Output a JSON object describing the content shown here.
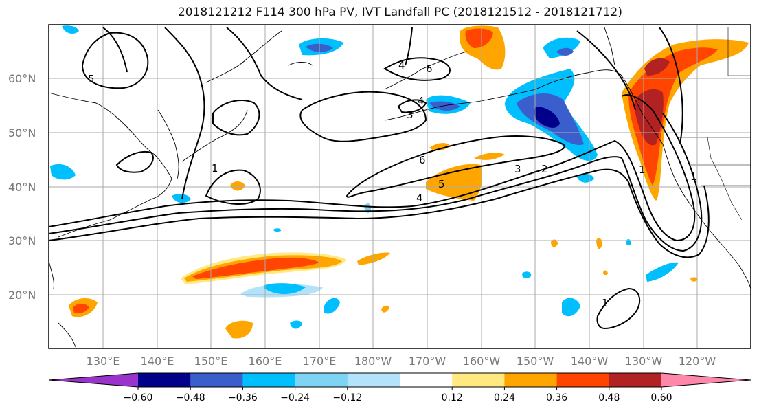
{
  "title": "2018121212 F114 300 hPa PV, IVT Landfall PC (2018121512 - 2018121712)",
  "map": {
    "lat_labels": [
      "60°N",
      "50°N",
      "40°N",
      "30°N",
      "20°N"
    ],
    "lon_labels": [
      "130°E",
      "140°E",
      "150°E",
      "160°E",
      "170°E",
      "180°W",
      "170°W",
      "160°W",
      "150°W",
      "140°W",
      "130°W",
      "120°W"
    ],
    "contour_labels": [
      "5",
      "6",
      "4",
      "3",
      "1",
      "6",
      "5",
      "4",
      "3",
      "2",
      "1",
      "1",
      "1",
      "4"
    ]
  },
  "colorbar": {
    "colors": [
      "#9933cc",
      "#00008b",
      "#3a5fcd",
      "#00bfff",
      "#7dd4f5",
      "#b3e3fb",
      "#ffffff",
      "#ffe980",
      "#ffa500",
      "#ff4500",
      "#b22222",
      "#ff88aa"
    ],
    "tick_labels": [
      "-0.60",
      "-0.48",
      "-0.36",
      "-0.24",
      "-0.12",
      "0.12",
      "0.24",
      "0.36",
      "0.48",
      "0.60"
    ]
  }
}
